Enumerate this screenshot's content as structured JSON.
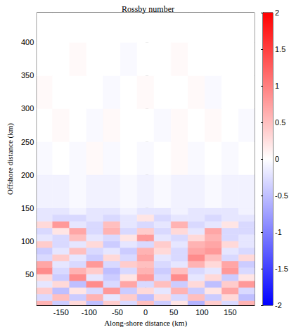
{
  "chart_data": {
    "type": "heatmap",
    "title": "Rossby number",
    "x_label": "Along-shore distance (km)",
    "y_label": "Offshore distance (km)",
    "xlim": [
      -193,
      193
    ],
    "xticks": [
      -150,
      -100,
      -50,
      0,
      50,
      100,
      150
    ],
    "ylim": [
      3,
      445
    ],
    "yticks": [
      50,
      100,
      150,
      200,
      250,
      300,
      350,
      400
    ],
    "cells": {
      "x_edges": [
        -195,
        -165,
        -135,
        -105,
        -75,
        -45,
        -15,
        15,
        45,
        75,
        105,
        135,
        165,
        195
      ],
      "y_edges": [
        0,
        10,
        20,
        30,
        40,
        50,
        60,
        70,
        80,
        90,
        100,
        110,
        120,
        130,
        140,
        150,
        200,
        250,
        300,
        350,
        400,
        450
      ],
      "values": [
        [
          0.6,
          -0.4,
          0.3,
          -0.5,
          0.4,
          -0.3,
          0.5,
          -0.4,
          0.2,
          -0.6,
          0.4,
          -0.3,
          0.6
        ],
        [
          -0.3,
          0.5,
          -0.4,
          0.6,
          -0.2,
          0.4,
          -0.5,
          0.3,
          -0.3,
          0.5,
          -0.4,
          0.3,
          -0.5
        ],
        [
          0.4,
          -0.5,
          0.2,
          -0.3,
          0.8,
          -0.4,
          0.3,
          -0.2,
          0.6,
          -0.4,
          0.2,
          0.7,
          -0.3
        ],
        [
          -0.2,
          0.3,
          -0.5,
          0.9,
          -0.3,
          0.7,
          -0.3,
          0.5,
          -0.4,
          0.3,
          -0.5,
          0.4,
          0.8
        ],
        [
          0.3,
          -0.4,
          0.9,
          -0.2,
          -0.4,
          0.2,
          0.8,
          -0.3,
          0.9,
          -0.2,
          0.3,
          -0.4,
          0.2
        ],
        [
          0.9,
          -0.3,
          0.6,
          0.4,
          -0.5,
          -0.3,
          0.6,
          -0.4,
          0.5,
          -0.3,
          -0.2,
          0.8,
          -0.3
        ],
        [
          0.7,
          -0.2,
          -0.3,
          0.8,
          -0.3,
          0.4,
          0.5,
          -0.3,
          -0.2,
          0.6,
          0.3,
          0.7,
          -0.4
        ],
        [
          -0.3,
          0.4,
          -0.2,
          -0.4,
          0.3,
          -0.3,
          0.7,
          -0.2,
          -0.3,
          0.9,
          0.5,
          -0.3,
          0.3
        ],
        [
          -0.4,
          -0.2,
          0.5,
          -0.3,
          -0.2,
          -0.4,
          0.6,
          0.3,
          -0.3,
          0.7,
          0.8,
          -0.2,
          -0.3
        ],
        [
          0.4,
          -0.3,
          -0.2,
          0.3,
          -0.4,
          -0.2,
          -0.3,
          0.4,
          -0.2,
          0.6,
          0.7,
          0.3,
          -0.2
        ],
        [
          -0.2,
          -0.3,
          0.5,
          -0.2,
          -0.3,
          0.2,
          0.8,
          -0.2,
          -0.3,
          0.3,
          0.6,
          -0.3,
          -0.2
        ],
        [
          -0.3,
          0.2,
          0.7,
          -0.3,
          0.6,
          -0.3,
          0.4,
          -0.3,
          0.3,
          -0.2,
          0.7,
          -0.3,
          -0.3
        ],
        [
          0.3,
          0.8,
          -0.2,
          -0.3,
          0.5,
          -0.2,
          -0.3,
          -0.2,
          0.6,
          -0.3,
          -0.2,
          0.2,
          -0.3
        ],
        [
          -0.2,
          -0.3,
          -0.3,
          -0.2,
          -0.3,
          -0.2,
          0.2,
          -0.3,
          -0.2,
          -0.2,
          -0.3,
          -0.2,
          -0.2
        ],
        [
          -0.2,
          -0.2,
          -0.1,
          -0.2,
          -0.2,
          -0.1,
          -0.2,
          -0.2,
          -0.1,
          -0.2,
          -0.2,
          -0.2,
          -0.1
        ],
        [
          -0.1,
          -0.1,
          -0.05,
          -0.1,
          -0.1,
          -0.05,
          -0.1,
          -0.05,
          -0.1,
          -0.1,
          -0.05,
          -0.1,
          -0.1
        ],
        [
          -0.05,
          0,
          -0.05,
          0.05,
          -0.05,
          0,
          -0.05,
          0,
          0.05,
          -0.05,
          0,
          -0.05,
          0
        ],
        [
          0,
          0.05,
          0,
          -0.05,
          0.05,
          0,
          0,
          -0.05,
          0.05,
          0,
          0.05,
          0,
          -0.05
        ],
        [
          0.05,
          0,
          0,
          0,
          -0.05,
          0,
          0.05,
          0,
          0,
          0.05,
          -0.05,
          0,
          0
        ],
        [
          0,
          0,
          0.05,
          0,
          0,
          -0.05,
          0,
          0,
          0.05,
          0,
          0,
          0,
          0
        ],
        [
          0,
          0,
          0,
          0,
          0,
          0,
          0,
          0,
          0,
          0,
          0,
          0,
          0
        ]
      ]
    },
    "colorbar": {
      "range": [
        -2,
        2
      ],
      "ticks": [
        -2,
        -1.5,
        -1,
        -0.5,
        0,
        0.5,
        1,
        1.5,
        2
      ]
    }
  }
}
